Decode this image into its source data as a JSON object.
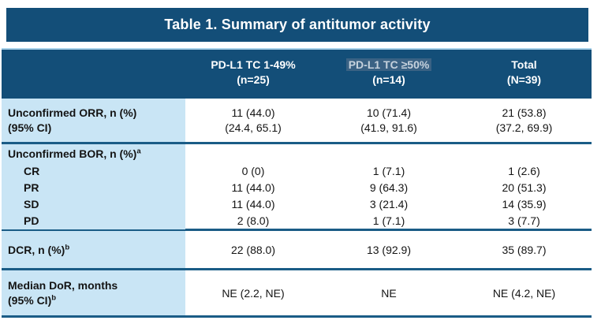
{
  "title": "Table 1. Summary of antitumor activity",
  "colors": {
    "navy": "#134E78",
    "divider": "#1A5C86",
    "label_bg": "#C9E5F5",
    "top_accent": "#A9D2EA",
    "highlight_bg": "#3A6284",
    "highlight_text": "#C6D2DD"
  },
  "columns": [
    {
      "line1": "PD-L1 TC 1-49%",
      "line2": "(n=25)",
      "highlighted": false
    },
    {
      "line1": "PD-L1 TC ≥50%",
      "line2": "(n=14)",
      "highlighted": true
    },
    {
      "line1": "Total",
      "line2": "(N=39)",
      "highlighted": false
    }
  ],
  "groups": [
    {
      "rows": [
        {
          "label_lines": [
            {
              "text": "Unconfirmed ORR, n (%)",
              "sup": "",
              "indent": false
            },
            {
              "text": "(95% CI)",
              "sup": "",
              "indent": false
            }
          ],
          "cells": [
            [
              "11 (44.0)",
              "(24.4, 65.1)"
            ],
            [
              "10 (71.4)",
              "(41.9, 91.6)"
            ],
            [
              "21 (53.8)",
              "(37.2, 69.9)"
            ]
          ]
        }
      ]
    },
    {
      "rows": [
        {
          "label_lines": [
            {
              "text": "Unconfirmed BOR, n (%)",
              "sup": "a",
              "indent": false
            }
          ],
          "cells": [
            [],
            [],
            []
          ]
        },
        {
          "label_lines": [
            {
              "text": "CR",
              "sup": "",
              "indent": true
            }
          ],
          "cells": [
            [
              "0 (0)"
            ],
            [
              "1 (7.1)"
            ],
            [
              "1 (2.6)"
            ]
          ]
        },
        {
          "label_lines": [
            {
              "text": "PR",
              "sup": "",
              "indent": true
            }
          ],
          "cells": [
            [
              "11 (44.0)"
            ],
            [
              "9 (64.3)"
            ],
            [
              "20 (51.3)"
            ]
          ]
        },
        {
          "label_lines": [
            {
              "text": "SD",
              "sup": "",
              "indent": true
            }
          ],
          "cells": [
            [
              "11 (44.0)"
            ],
            [
              "3 (21.4)"
            ],
            [
              "14 (35.9)"
            ]
          ]
        },
        {
          "label_lines": [
            {
              "text": "PD",
              "sup": "",
              "indent": true
            }
          ],
          "cells": [
            [
              "2 (8.0)"
            ],
            [
              "1 (7.1)"
            ],
            [
              "3 (7.7)"
            ]
          ]
        }
      ]
    },
    {
      "rows": [
        {
          "label_lines": [
            {
              "text": "DCR, n (%)",
              "sup": "b",
              "indent": false
            }
          ],
          "cells": [
            [
              "22 (88.0)"
            ],
            [
              "13 (92.9)"
            ],
            [
              "35 (89.7)"
            ]
          ]
        }
      ]
    },
    {
      "rows": [
        {
          "label_lines": [
            {
              "text": "Median DoR, months",
              "sup": "",
              "indent": false
            },
            {
              "text": "(95% CI)",
              "sup": "b",
              "indent": false
            }
          ],
          "cells": [
            [
              "NE (2.2, NE)"
            ],
            [
              "NE"
            ],
            [
              "NE (4.2, NE)"
            ]
          ]
        }
      ]
    }
  ]
}
